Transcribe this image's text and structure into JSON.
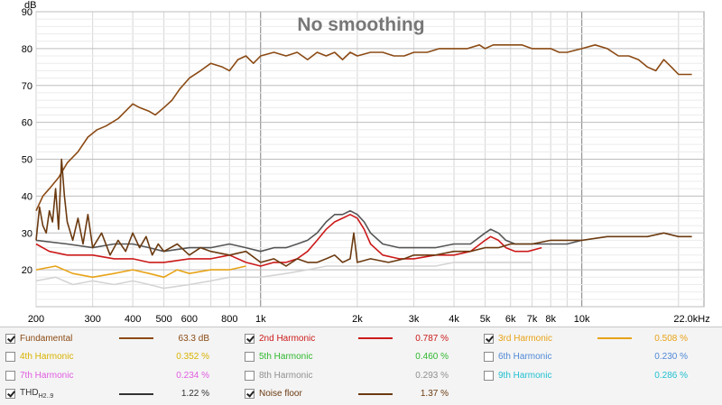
{
  "chart_data": {
    "type": "line",
    "title": "No smoothing",
    "ylabel": "dB",
    "xscale": "log",
    "xlim": [
      200,
      24000
    ],
    "ylim": [
      10,
      90
    ],
    "grid": true,
    "x_ticks": [
      {
        "v": 200,
        "label": "200"
      },
      {
        "v": 300,
        "label": "300"
      },
      {
        "v": 400,
        "label": "400"
      },
      {
        "v": 500,
        "label": "500"
      },
      {
        "v": 600,
        "label": "600"
      },
      {
        "v": 800,
        "label": "800"
      },
      {
        "v": 1000,
        "label": "1k"
      },
      {
        "v": 2000,
        "label": "2k"
      },
      {
        "v": 3000,
        "label": "3k"
      },
      {
        "v": 4000,
        "label": "4k"
      },
      {
        "v": 5000,
        "label": "5k"
      },
      {
        "v": 6000,
        "label": "6k"
      },
      {
        "v": 7000,
        "label": "7k"
      },
      {
        "v": 8000,
        "label": "8k"
      },
      {
        "v": 10000,
        "label": "10k"
      },
      {
        "v": 22000,
        "label": "22.0kHz"
      }
    ],
    "y_ticks": [
      20,
      30,
      40,
      50,
      60,
      70,
      80,
      90
    ],
    "series": [
      {
        "name": "Fundamental",
        "color": "#8b4a14",
        "points": [
          [
            200,
            36
          ],
          [
            210,
            40
          ],
          [
            220,
            42
          ],
          [
            235,
            45
          ],
          [
            250,
            49
          ],
          [
            270,
            52
          ],
          [
            290,
            56
          ],
          [
            310,
            58
          ],
          [
            330,
            59
          ],
          [
            360,
            61
          ],
          [
            400,
            65
          ],
          [
            420,
            64
          ],
          [
            450,
            63
          ],
          [
            470,
            62
          ],
          [
            500,
            64
          ],
          [
            530,
            66
          ],
          [
            560,
            69
          ],
          [
            600,
            72
          ],
          [
            650,
            74
          ],
          [
            700,
            76
          ],
          [
            760,
            75
          ],
          [
            800,
            74
          ],
          [
            850,
            77
          ],
          [
            900,
            78
          ],
          [
            950,
            76
          ],
          [
            1000,
            78
          ],
          [
            1100,
            79
          ],
          [
            1200,
            78
          ],
          [
            1300,
            79
          ],
          [
            1400,
            77
          ],
          [
            1500,
            79
          ],
          [
            1600,
            78
          ],
          [
            1700,
            79
          ],
          [
            1800,
            77
          ],
          [
            1900,
            79
          ],
          [
            2000,
            78
          ],
          [
            2200,
            79
          ],
          [
            2400,
            79
          ],
          [
            2600,
            78
          ],
          [
            2800,
            78
          ],
          [
            3000,
            79
          ],
          [
            3300,
            79
          ],
          [
            3600,
            80
          ],
          [
            4000,
            80
          ],
          [
            4400,
            80
          ],
          [
            4800,
            81
          ],
          [
            5000,
            80
          ],
          [
            5300,
            81
          ],
          [
            5600,
            81
          ],
          [
            6000,
            81
          ],
          [
            6500,
            81
          ],
          [
            7000,
            80
          ],
          [
            7500,
            80
          ],
          [
            8000,
            80
          ],
          [
            8500,
            79
          ],
          [
            9000,
            79
          ],
          [
            10000,
            80
          ],
          [
            11000,
            81
          ],
          [
            12000,
            80
          ],
          [
            13000,
            78
          ],
          [
            14000,
            78
          ],
          [
            15000,
            77
          ],
          [
            16000,
            75
          ],
          [
            17000,
            74
          ],
          [
            18000,
            77
          ],
          [
            19000,
            75
          ],
          [
            20000,
            73
          ],
          [
            22000,
            73
          ]
        ]
      },
      {
        "name": "2nd Harmonic",
        "color": "#cc1a1a",
        "points": [
          [
            200,
            27
          ],
          [
            220,
            25
          ],
          [
            250,
            24
          ],
          [
            300,
            24
          ],
          [
            350,
            23
          ],
          [
            400,
            23
          ],
          [
            450,
            22
          ],
          [
            500,
            22
          ],
          [
            600,
            23
          ],
          [
            700,
            23
          ],
          [
            800,
            24
          ],
          [
            900,
            22
          ],
          [
            1000,
            21
          ],
          [
            1100,
            22
          ],
          [
            1200,
            22
          ],
          [
            1300,
            23
          ],
          [
            1400,
            25
          ],
          [
            1500,
            28
          ],
          [
            1600,
            31
          ],
          [
            1700,
            33
          ],
          [
            1800,
            34
          ],
          [
            1900,
            35
          ],
          [
            2000,
            34
          ],
          [
            2100,
            31
          ],
          [
            2200,
            27
          ],
          [
            2400,
            24
          ],
          [
            2700,
            23
          ],
          [
            3000,
            23
          ],
          [
            3500,
            24
          ],
          [
            4000,
            24
          ],
          [
            4500,
            25
          ],
          [
            5000,
            28
          ],
          [
            5200,
            29
          ],
          [
            5500,
            28
          ],
          [
            5800,
            26
          ],
          [
            6200,
            25
          ],
          [
            6800,
            25
          ],
          [
            7500,
            26
          ]
        ]
      },
      {
        "name": "3rd Harmonic",
        "color": "#e8a317",
        "points": [
          [
            200,
            20
          ],
          [
            230,
            21
          ],
          [
            260,
            19
          ],
          [
            300,
            18
          ],
          [
            350,
            19
          ],
          [
            400,
            20
          ],
          [
            450,
            19
          ],
          [
            500,
            18
          ],
          [
            550,
            20
          ],
          [
            600,
            19
          ],
          [
            700,
            20
          ],
          [
            800,
            20
          ],
          [
            900,
            21
          ]
        ]
      },
      {
        "name": "THD H2..9",
        "color": "#555555",
        "points": [
          [
            200,
            28
          ],
          [
            250,
            27
          ],
          [
            300,
            26
          ],
          [
            350,
            27
          ],
          [
            400,
            27
          ],
          [
            450,
            26
          ],
          [
            500,
            25
          ],
          [
            600,
            26
          ],
          [
            700,
            26
          ],
          [
            800,
            27
          ],
          [
            900,
            26
          ],
          [
            1000,
            25
          ],
          [
            1100,
            26
          ],
          [
            1200,
            26
          ],
          [
            1300,
            27
          ],
          [
            1400,
            28
          ],
          [
            1500,
            30
          ],
          [
            1600,
            33
          ],
          [
            1700,
            35
          ],
          [
            1800,
            35
          ],
          [
            1900,
            36
          ],
          [
            2000,
            35
          ],
          [
            2100,
            33
          ],
          [
            2200,
            30
          ],
          [
            2400,
            27
          ],
          [
            2700,
            26
          ],
          [
            3000,
            26
          ],
          [
            3500,
            26
          ],
          [
            4000,
            27
          ],
          [
            4500,
            27
          ],
          [
            5000,
            30
          ],
          [
            5200,
            31
          ],
          [
            5500,
            30
          ],
          [
            5800,
            28
          ],
          [
            6200,
            27
          ],
          [
            6800,
            27
          ],
          [
            7500,
            27
          ],
          [
            8000,
            27
          ],
          [
            9000,
            27
          ],
          [
            10000,
            28
          ]
        ]
      },
      {
        "name": "Noise floor",
        "color": "#6b3a10",
        "points": [
          [
            200,
            28
          ],
          [
            205,
            37
          ],
          [
            210,
            32
          ],
          [
            215,
            30
          ],
          [
            220,
            36
          ],
          [
            225,
            33
          ],
          [
            230,
            42
          ],
          [
            235,
            31
          ],
          [
            240,
            50
          ],
          [
            245,
            40
          ],
          [
            250,
            33
          ],
          [
            260,
            28
          ],
          [
            270,
            34
          ],
          [
            280,
            27
          ],
          [
            290,
            35
          ],
          [
            300,
            26
          ],
          [
            320,
            30
          ],
          [
            340,
            24
          ],
          [
            360,
            28
          ],
          [
            380,
            25
          ],
          [
            400,
            30
          ],
          [
            420,
            26
          ],
          [
            440,
            29
          ],
          [
            460,
            24
          ],
          [
            480,
            27
          ],
          [
            500,
            25
          ],
          [
            550,
            27
          ],
          [
            600,
            24
          ],
          [
            650,
            26
          ],
          [
            700,
            25
          ],
          [
            800,
            24
          ],
          [
            900,
            25
          ],
          [
            1000,
            22
          ],
          [
            1100,
            23
          ],
          [
            1200,
            21
          ],
          [
            1300,
            23
          ],
          [
            1400,
            22
          ],
          [
            1500,
            22
          ],
          [
            1600,
            23
          ],
          [
            1700,
            24
          ],
          [
            1800,
            22
          ],
          [
            1900,
            23
          ],
          [
            1950,
            30
          ],
          [
            2000,
            22
          ],
          [
            2200,
            23
          ],
          [
            2500,
            22
          ],
          [
            2800,
            23
          ],
          [
            3000,
            24
          ],
          [
            3500,
            24
          ],
          [
            4000,
            25
          ],
          [
            4500,
            25
          ],
          [
            5000,
            26
          ],
          [
            5500,
            26
          ],
          [
            6000,
            27
          ],
          [
            7000,
            27
          ],
          [
            8000,
            28
          ],
          [
            9000,
            28
          ],
          [
            10000,
            28
          ],
          [
            12000,
            29
          ],
          [
            14000,
            29
          ],
          [
            16000,
            29
          ],
          [
            18000,
            30
          ],
          [
            20000,
            29
          ],
          [
            22000,
            29
          ]
        ]
      },
      {
        "name": "8th Harmonic",
        "color": "#d4d4d4",
        "points": [
          [
            200,
            17
          ],
          [
            230,
            18
          ],
          [
            260,
            16
          ],
          [
            300,
            17
          ],
          [
            350,
            16
          ],
          [
            400,
            17
          ],
          [
            450,
            16
          ],
          [
            500,
            15
          ],
          [
            600,
            16
          ],
          [
            700,
            17
          ],
          [
            800,
            18
          ],
          [
            900,
            18
          ],
          [
            1000,
            18
          ],
          [
            1200,
            19
          ],
          [
            1400,
            20
          ],
          [
            1600,
            21
          ],
          [
            1800,
            21
          ],
          [
            2000,
            21
          ],
          [
            2500,
            21
          ],
          [
            3000,
            21
          ],
          [
            3500,
            21
          ],
          [
            4000,
            22
          ],
          [
            5000,
            22
          ],
          [
            6000,
            22
          ],
          [
            7000,
            22
          ]
        ]
      }
    ]
  },
  "legend": [
    {
      "checked": true,
      "name": "Fundamental",
      "sub": "",
      "color": "#8b4a14",
      "value": "63.3 dB",
      "text_color": "#8b4a14"
    },
    {
      "checked": true,
      "name": "2nd Harmonic",
      "sub": "",
      "color": "#cc1a1a",
      "value": "0.787 %",
      "text_color": "#cc1a1a"
    },
    {
      "checked": true,
      "name": "3rd Harmonic",
      "sub": "",
      "color": "#e8a317",
      "value": "0.508 %",
      "text_color": "#e8a317"
    },
    {
      "checked": false,
      "name": "4th Harmonic",
      "sub": "",
      "color": "",
      "value": "0.352 %",
      "text_color": "#d9b300"
    },
    {
      "checked": false,
      "name": "5th Harmonic",
      "sub": "",
      "color": "",
      "value": "0.460 %",
      "text_color": "#2fb82f"
    },
    {
      "checked": false,
      "name": "6th Harmonic",
      "sub": "",
      "color": "",
      "value": "0.230 %",
      "text_color": "#4f88d6"
    },
    {
      "checked": false,
      "name": "7th Harmonic",
      "sub": "",
      "color": "",
      "value": "0.234 %",
      "text_color": "#e05ce0"
    },
    {
      "checked": false,
      "name": "8th Harmonic",
      "sub": "",
      "color": "",
      "value": "0.293 %",
      "text_color": "#909090"
    },
    {
      "checked": false,
      "name": "9th Harmonic",
      "sub": "",
      "color": "",
      "value": "0.286 %",
      "text_color": "#20c0d0"
    },
    {
      "checked": true,
      "name": "THD",
      "sub": "H2..9",
      "color": "#333333",
      "value": "1.22 %",
      "text_color": "#333333"
    },
    {
      "checked": true,
      "name": "Noise floor",
      "sub": "",
      "color": "#6b3a10",
      "value": "1.37 %",
      "text_color": "#6b3a10"
    }
  ]
}
